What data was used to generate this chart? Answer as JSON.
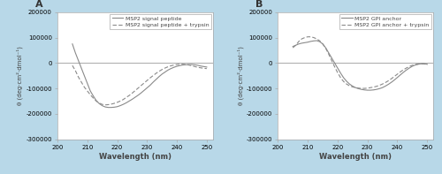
{
  "background_color": "#b8d8e8",
  "plot_bg_color": "#ffffff",
  "line_color": "#8a8a8a",
  "zero_line_color": "#aaaaaa",
  "xlim": [
    200,
    252
  ],
  "ylim": [
    -300000,
    200000
  ],
  "yticks": [
    -300000,
    -200000,
    -100000,
    0,
    100000,
    200000
  ],
  "xticks": [
    200,
    210,
    220,
    230,
    240,
    250
  ],
  "xlabel": "Wavelength (nm)",
  "ylabel": "θ (deg·cm²·dmol⁻¹)",
  "panel_A_label": "A",
  "panel_B_label": "B",
  "legend_A": [
    "MSP2 signal peptide",
    "MSP2 signal peptide + trypsin"
  ],
  "legend_B": [
    "MSP2 GPI anchor",
    "MSP2 GPI anchor + trypsin"
  ],
  "panel_A_solid_x": [
    205,
    206,
    207,
    208,
    209,
    210,
    211,
    212,
    213,
    214,
    215,
    216,
    217,
    218,
    219,
    220,
    221,
    222,
    223,
    224,
    225,
    226,
    227,
    228,
    229,
    230,
    231,
    232,
    233,
    234,
    235,
    236,
    237,
    238,
    239,
    240,
    241,
    242,
    243,
    244,
    245,
    246,
    247,
    248,
    249,
    250
  ],
  "panel_A_solid_y": [
    75000,
    40000,
    10000,
    -20000,
    -50000,
    -80000,
    -110000,
    -130000,
    -148000,
    -160000,
    -168000,
    -173000,
    -175000,
    -175000,
    -174000,
    -172000,
    -168000,
    -163000,
    -157000,
    -150000,
    -143000,
    -135000,
    -127000,
    -118000,
    -108000,
    -98000,
    -88000,
    -76000,
    -65000,
    -54000,
    -44000,
    -36000,
    -28000,
    -22000,
    -17000,
    -13000,
    -10000,
    -8000,
    -7000,
    -6000,
    -6000,
    -7000,
    -9000,
    -12000,
    -14000,
    -16000
  ],
  "panel_A_dashed_x": [
    205,
    206,
    207,
    208,
    209,
    210,
    211,
    212,
    213,
    214,
    215,
    216,
    217,
    218,
    219,
    220,
    221,
    222,
    223,
    224,
    225,
    226,
    227,
    228,
    229,
    230,
    231,
    232,
    233,
    234,
    235,
    236,
    237,
    238,
    239,
    240,
    241,
    242,
    243,
    244,
    245,
    246,
    247,
    248,
    249,
    250
  ],
  "panel_A_dashed_y": [
    -10000,
    -30000,
    -55000,
    -75000,
    -95000,
    -110000,
    -125000,
    -138000,
    -150000,
    -158000,
    -163000,
    -165000,
    -164000,
    -162000,
    -159000,
    -155000,
    -150000,
    -144000,
    -136000,
    -128000,
    -119000,
    -109000,
    -99000,
    -89000,
    -79000,
    -69000,
    -59000,
    -50000,
    -41000,
    -33000,
    -26000,
    -20000,
    -15000,
    -11000,
    -8000,
    -6000,
    -5000,
    -5000,
    -6000,
    -8000,
    -11000,
    -14000,
    -17000,
    -19000,
    -21000,
    -22000
  ],
  "panel_B_solid_x": [
    205,
    206,
    207,
    208,
    209,
    210,
    211,
    212,
    213,
    214,
    215,
    216,
    217,
    218,
    219,
    220,
    221,
    222,
    223,
    224,
    225,
    226,
    227,
    228,
    229,
    230,
    231,
    232,
    233,
    234,
    235,
    236,
    237,
    238,
    239,
    240,
    241,
    242,
    243,
    244,
    245,
    246,
    247,
    248,
    249,
    250
  ],
  "panel_B_solid_y": [
    65000,
    70000,
    75000,
    78000,
    80000,
    82000,
    85000,
    87000,
    88000,
    84000,
    75000,
    60000,
    40000,
    20000,
    0,
    -20000,
    -40000,
    -58000,
    -72000,
    -83000,
    -91000,
    -97000,
    -101000,
    -104000,
    -106000,
    -107000,
    -107000,
    -106000,
    -104000,
    -101000,
    -97000,
    -91000,
    -84000,
    -76000,
    -67000,
    -57000,
    -47000,
    -37000,
    -28000,
    -20000,
    -13000,
    -8000,
    -5000,
    -3000,
    -3000,
    -5000
  ],
  "panel_B_dashed_x": [
    205,
    206,
    207,
    208,
    209,
    210,
    211,
    212,
    213,
    214,
    215,
    216,
    217,
    218,
    219,
    220,
    221,
    222,
    223,
    224,
    225,
    226,
    227,
    228,
    229,
    230,
    231,
    232,
    233,
    234,
    235,
    236,
    237,
    238,
    239,
    240,
    241,
    242,
    243,
    244,
    245,
    246,
    247,
    248,
    249,
    250
  ],
  "panel_B_dashed_y": [
    60000,
    70000,
    85000,
    95000,
    100000,
    103000,
    103000,
    100000,
    95000,
    87000,
    75000,
    58000,
    35000,
    10000,
    -15000,
    -38000,
    -58000,
    -73000,
    -83000,
    -90000,
    -94000,
    -97000,
    -99000,
    -100000,
    -100000,
    -99000,
    -97000,
    -95000,
    -92000,
    -88000,
    -83000,
    -77000,
    -70000,
    -62000,
    -53000,
    -44000,
    -35000,
    -27000,
    -20000,
    -14000,
    -9000,
    -6000,
    -4000,
    -3000,
    -4000,
    -6000
  ]
}
